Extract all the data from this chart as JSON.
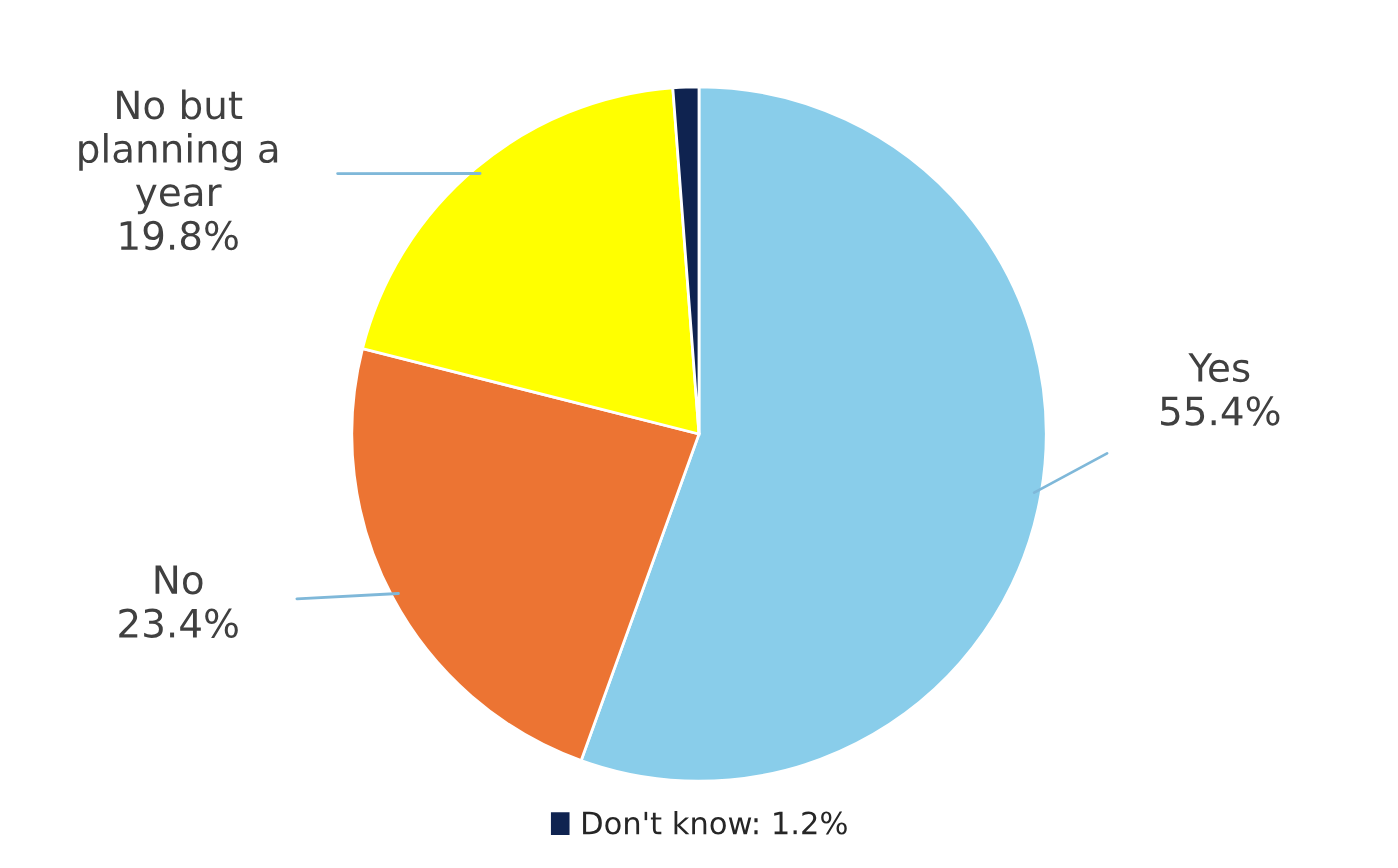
{
  "chart_data": {
    "type": "pie",
    "categories": [
      "Yes",
      "No",
      "No but\nplanning a\nyear",
      "Don't know: 1.2%"
    ],
    "values": [
      55.4,
      23.4,
      19.8,
      1.2
    ],
    "value_labels": [
      "55.4%",
      "23.4%",
      "19.8%",
      null
    ],
    "colors": [
      "#89cdea",
      "#ec7433",
      "#ffff00",
      "#0f2350"
    ],
    "legend": "bottom"
  }
}
